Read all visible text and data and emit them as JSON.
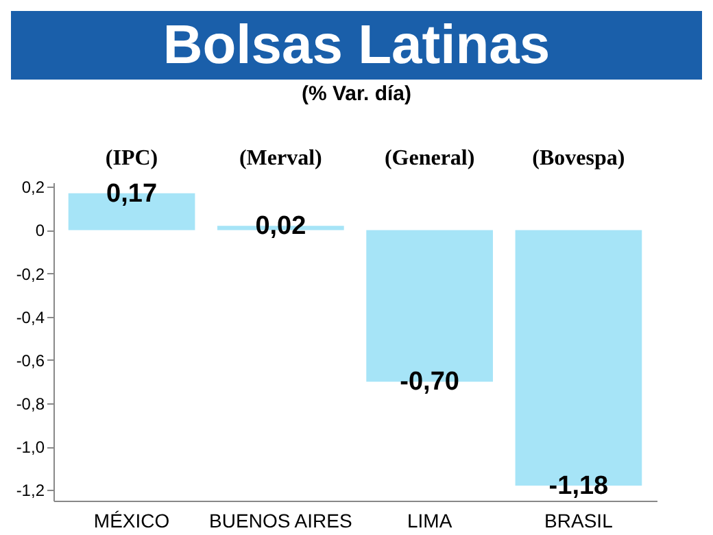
{
  "chart_data": {
    "type": "bar",
    "title": "Bolsas Latinas",
    "subtitle": "(% Var. día)",
    "categories": [
      "MÉXICO",
      "BUENOS AIRES",
      "LIMA",
      "BRASIL"
    ],
    "values": [
      0.17,
      0.02,
      -0.7,
      -1.18
    ],
    "value_labels": [
      "0,17",
      "0,02",
      "-0,70",
      "-1,18"
    ],
    "color": "#a6e4f7",
    "annotations": [
      "(IPC)",
      "(Merval)",
      "(General)",
      "(Bovespa)"
    ],
    "ylim": [
      -1.25,
      0.22
    ],
    "yticks": [
      {
        "value": 0.2,
        "label": "0,2"
      },
      0,
      {
        "value": -0.2,
        "label": "-0,2"
      },
      {
        "value": -0.4,
        "label": "-0,4"
      },
      {
        "value": -0.6,
        "label": "-0,6"
      },
      {
        "value": -0.8,
        "label": "-0,8"
      },
      {
        "value": -1,
        "label": "-1,0"
      },
      {
        "value": -1.2,
        "label": "-1,2"
      }
    ],
    "grid": false
  }
}
